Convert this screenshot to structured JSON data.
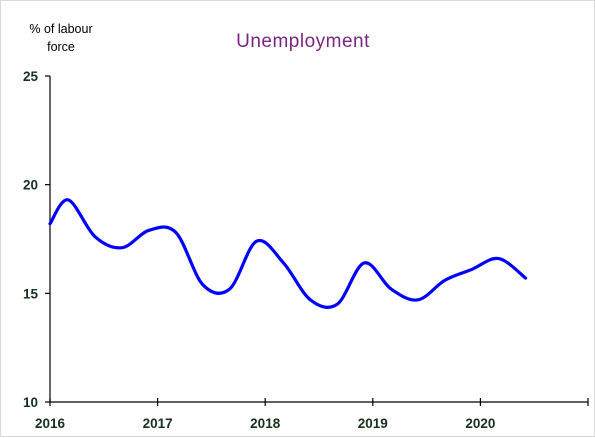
{
  "chart_data": {
    "type": "line",
    "title": "Unemployment",
    "ylabel": "% of labour force",
    "ylabel_lines": [
      "% of labour",
      "force"
    ],
    "xlabel": "",
    "x_ticks": [
      "2016",
      "2017",
      "2018",
      "2019",
      "2020"
    ],
    "xlim": [
      2016.0,
      2021.0
    ],
    "ylim": [
      10,
      25
    ],
    "y_ticks": [
      10,
      15,
      20,
      25
    ],
    "grid": false,
    "legend": "none",
    "series": [
      {
        "x": [
          2016.0,
          2016.17,
          2016.42,
          2016.67,
          2016.92,
          2017.17,
          2017.42,
          2017.67,
          2017.92,
          2018.17,
          2018.42,
          2018.67,
          2018.92,
          2019.17,
          2019.42,
          2019.67,
          2019.92,
          2020.17,
          2020.42
        ],
        "values": [
          18.2,
          19.3,
          17.6,
          17.1,
          17.9,
          17.8,
          15.4,
          15.2,
          17.4,
          16.4,
          14.7,
          14.5,
          16.4,
          15.2,
          14.7,
          15.6,
          16.1,
          16.6,
          15.7
        ]
      }
    ],
    "colors": {
      "line": "#0000ff",
      "title": "#7b2582",
      "tick_labels": "#17301c",
      "axes": "#000000"
    }
  }
}
